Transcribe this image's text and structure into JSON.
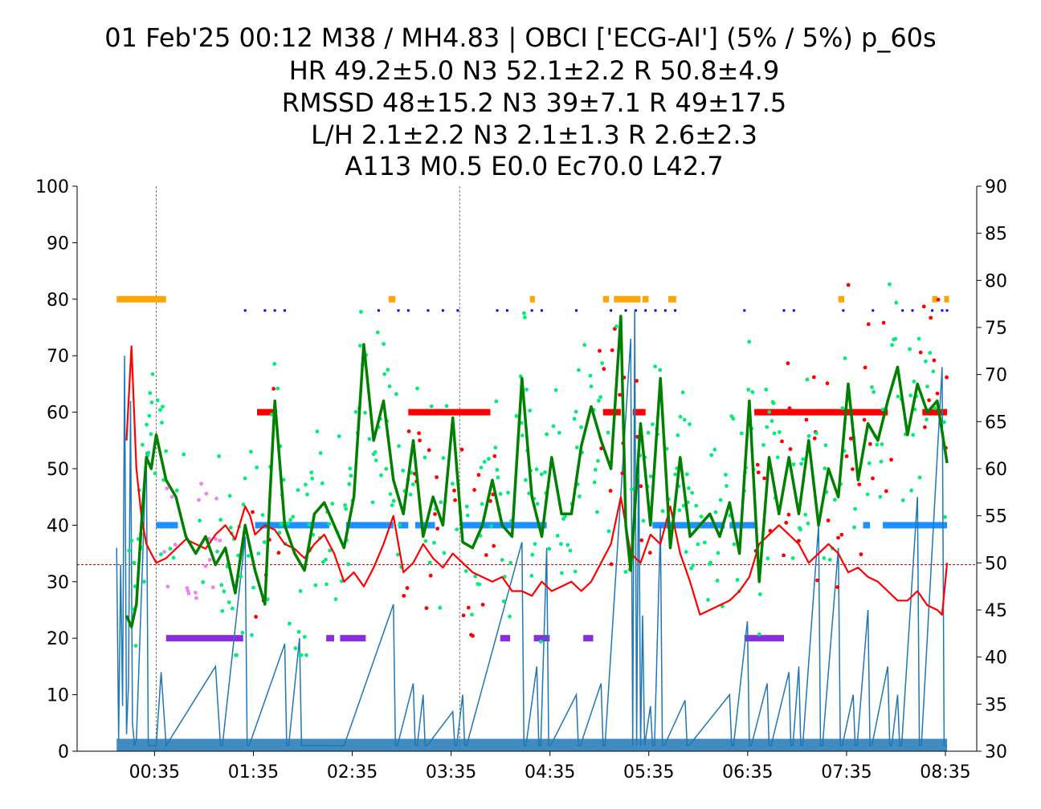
{
  "title_lines": [
    "01 Feb'25 00:12 M38 / MH4.83 | OBCI ['ECG-AI'] (5% / 5%) p_60s",
    "HR 49.2±5.0 N3 52.1±2.2 R 50.8±4.9",
    "RMSSD 48±15.2 N3 39±7.1 R 49±17.5",
    "L/H 2.1±2.2 N3 2.1±1.3 R 2.6±2.3",
    "A113 M0.5 E0.0 Ec70.0 L42.7"
  ],
  "chart_data": {
    "type": "line",
    "x_ticks": [
      "00:35",
      "01:35",
      "02:35",
      "03:35",
      "04:35",
      "05:35",
      "06:35",
      "07:35",
      "08:35"
    ],
    "x_tick_hours": [
      0.583,
      1.583,
      2.583,
      3.583,
      4.583,
      5.583,
      6.583,
      7.583,
      8.583
    ],
    "xlim": [
      -0.2,
      8.9
    ],
    "y_left": {
      "lim": [
        0,
        100
      ],
      "ticks": [
        0,
        10,
        20,
        30,
        40,
        50,
        60,
        70,
        80,
        90,
        100
      ]
    },
    "y_right": {
      "lim": [
        30,
        90
      ],
      "ticks": [
        30,
        35,
        40,
        45,
        50,
        55,
        60,
        65,
        70,
        75,
        80,
        85,
        90
      ]
    },
    "reference_line_right": 49.8,
    "vertical_markers_hours": [
      0.6,
      3.67
    ],
    "colors": {
      "hr_line": "#ff0000",
      "rmssd_line": "#008000",
      "rmssd_points": "#00ee77",
      "wake_points": "#ee82ee",
      "rem_points": "#ff0000",
      "activity": "#1f77b4",
      "wake_band": "#ffa500",
      "rem_band": "#ff0000",
      "light_band": "#1e90ff",
      "deep_band": "#8a2be2",
      "marker_dots": "#0000ff",
      "reference": "#aa0000"
    },
    "hypnogram_bands": {
      "wake_80": [
        [
          0.2,
          0.7
        ],
        [
          2.95,
          3.02
        ],
        [
          4.38,
          4.43
        ],
        [
          5.12,
          5.18
        ],
        [
          5.23,
          5.5
        ],
        [
          5.52,
          5.58
        ],
        [
          5.78,
          5.86
        ],
        [
          7.5,
          7.56
        ],
        [
          8.45,
          8.5
        ],
        [
          8.57,
          8.62
        ]
      ],
      "rem_60": [
        [
          1.62,
          1.8
        ],
        [
          3.15,
          3.98
        ],
        [
          5.12,
          5.3
        ],
        [
          5.42,
          5.55
        ],
        [
          6.65,
          8.0
        ],
        [
          8.35,
          8.6
        ]
      ],
      "light_40": [
        [
          0.6,
          0.82
        ],
        [
          1.6,
          2.35
        ],
        [
          2.52,
          3.0
        ],
        [
          3.05,
          3.15
        ],
        [
          3.22,
          3.42
        ],
        [
          3.68,
          4.55
        ],
        [
          5.62,
          6.35
        ],
        [
          6.4,
          6.68
        ],
        [
          7.75,
          7.82
        ],
        [
          7.95,
          8.6
        ]
      ],
      "deep_20": [
        [
          0.7,
          1.48
        ],
        [
          2.32,
          2.4
        ],
        [
          2.46,
          2.72
        ],
        [
          4.08,
          4.18
        ],
        [
          4.42,
          4.58
        ],
        [
          4.92,
          5.02
        ],
        [
          6.55,
          6.95
        ]
      ]
    },
    "hr_line": {
      "x": [
        0.3,
        0.35,
        0.4,
        0.45,
        0.5,
        0.55,
        0.6,
        0.7,
        0.8,
        0.9,
        1.0,
        1.1,
        1.2,
        1.3,
        1.4,
        1.5,
        1.55,
        1.6,
        1.7,
        1.8,
        1.9,
        2.0,
        2.1,
        2.2,
        2.3,
        2.4,
        2.5,
        2.6,
        2.7,
        2.8,
        2.9,
        3.0,
        3.1,
        3.2,
        3.3,
        3.4,
        3.5,
        3.6,
        3.7,
        3.8,
        3.9,
        4.0,
        4.1,
        4.2,
        4.3,
        4.4,
        4.5,
        4.6,
        4.7,
        4.8,
        4.9,
        5.0,
        5.1,
        5.2,
        5.3,
        5.35,
        5.4,
        5.5,
        5.6,
        5.7,
        5.8,
        5.9,
        6.0,
        6.1,
        6.2,
        6.3,
        6.4,
        6.5,
        6.6,
        6.7,
        6.8,
        6.9,
        7.0,
        7.1,
        7.2,
        7.3,
        7.4,
        7.5,
        7.6,
        7.7,
        7.8,
        7.9,
        8.0,
        8.1,
        8.2,
        8.3,
        8.4,
        8.5,
        8.55,
        8.6
      ],
      "y": [
        63,
        73,
        60,
        55,
        52,
        51,
        50,
        50.5,
        51.5,
        52.5,
        52,
        51.5,
        53,
        54,
        52.5,
        56,
        55,
        53,
        54,
        53.5,
        52,
        51.5,
        50.5,
        52,
        53,
        51,
        48,
        49,
        47.5,
        49.5,
        52,
        55,
        49,
        50,
        52,
        50.5,
        49.5,
        51,
        50,
        49,
        48.5,
        48,
        48.5,
        47,
        47,
        46.5,
        48,
        47,
        47.5,
        48,
        47,
        48,
        50,
        52,
        57,
        54,
        51,
        50,
        53,
        52,
        56,
        51,
        48,
        44.5,
        45,
        45.5,
        46,
        47,
        48.5,
        52,
        53,
        54,
        53,
        52,
        50,
        51,
        52,
        51,
        49,
        49.5,
        48.5,
        48,
        47,
        46,
        46,
        47,
        45.5,
        45,
        44.5,
        50
      ]
    },
    "rmssd_line": {
      "x": [
        0.3,
        0.35,
        0.4,
        0.45,
        0.5,
        0.55,
        0.6,
        0.65,
        0.7,
        0.8,
        0.9,
        1.0,
        1.1,
        1.2,
        1.3,
        1.4,
        1.5,
        1.6,
        1.7,
        1.75,
        1.8,
        1.9,
        2.0,
        2.1,
        2.2,
        2.3,
        2.4,
        2.5,
        2.6,
        2.7,
        2.8,
        2.9,
        3.0,
        3.1,
        3.2,
        3.3,
        3.4,
        3.5,
        3.6,
        3.7,
        3.8,
        3.9,
        4.0,
        4.1,
        4.2,
        4.3,
        4.4,
        4.5,
        4.6,
        4.7,
        4.8,
        4.9,
        5.0,
        5.1,
        5.2,
        5.3,
        5.35,
        5.4,
        5.5,
        5.6,
        5.7,
        5.8,
        5.9,
        6.0,
        6.1,
        6.2,
        6.3,
        6.4,
        6.5,
        6.6,
        6.7,
        6.8,
        6.9,
        7.0,
        7.1,
        7.2,
        7.3,
        7.4,
        7.5,
        7.6,
        7.7,
        7.8,
        7.9,
        8.0,
        8.1,
        8.2,
        8.3,
        8.4,
        8.5,
        8.6
      ],
      "y": [
        24,
        22,
        26,
        40,
        52,
        50,
        56,
        52,
        48,
        45,
        38,
        35,
        38,
        33,
        36,
        28,
        40,
        32,
        26,
        45,
        62,
        40,
        35,
        32,
        42,
        44,
        40,
        36,
        45,
        72,
        55,
        62,
        48,
        42,
        55,
        38,
        45,
        40,
        59,
        37,
        36,
        40,
        48,
        40,
        38,
        66,
        45,
        38,
        52,
        42,
        42,
        54,
        61,
        55,
        50,
        77,
        40,
        32,
        58,
        40,
        66,
        36,
        52,
        38,
        40,
        42,
        38,
        44,
        35,
        62,
        30,
        52,
        42,
        52,
        42,
        55,
        40,
        50,
        45,
        65,
        48,
        58,
        55,
        62,
        68,
        56,
        65,
        60,
        62,
        51
      ]
    },
    "activity_line": {
      "x": [
        0.2,
        0.22,
        0.24,
        0.26,
        0.28,
        0.3,
        0.32,
        0.34,
        0.36,
        0.38,
        0.4,
        0.5,
        0.52,
        0.6,
        0.65,
        0.7,
        1.2,
        1.25,
        1.27,
        1.5,
        1.52,
        1.54,
        1.9,
        1.92,
        1.94,
        2.05,
        2.07,
        2.09,
        2.5,
        3.0,
        3.02,
        3.04,
        3.2,
        3.22,
        3.24,
        3.3,
        3.32,
        3.34,
        3.6,
        3.62,
        3.64,
        3.7,
        3.72,
        3.74,
        4.3,
        4.32,
        4.34,
        4.45,
        4.47,
        4.49,
        4.55,
        4.57,
        4.59,
        4.85,
        4.87,
        4.89,
        5.1,
        5.12,
        5.14,
        5.4,
        5.42,
        5.44,
        5.46,
        5.48,
        5.5,
        5.52,
        5.54,
        5.6,
        5.62,
        5.64,
        5.7,
        5.72,
        5.74,
        5.95,
        5.97,
        5.99,
        6.4,
        6.42,
        6.44,
        6.58,
        6.6,
        6.62,
        6.78,
        6.8,
        6.82,
        7.0,
        7.02,
        7.04,
        7.1,
        7.12,
        7.14,
        7.3,
        7.32,
        7.34,
        7.5,
        7.52,
        7.54,
        7.65,
        7.67,
        7.69,
        7.8,
        7.82,
        7.84,
        8.0,
        8.02,
        8.04,
        8.1,
        8.12,
        8.14,
        8.3,
        8.32,
        8.34,
        8.55,
        8.57,
        8.59,
        8.6
      ],
      "y": [
        36,
        2,
        33,
        8,
        70,
        3,
        12,
        62,
        5,
        1,
        2,
        53,
        1,
        1,
        14,
        1,
        15,
        1,
        1,
        38,
        1,
        1,
        19,
        1,
        1,
        20,
        1,
        1,
        1,
        26,
        1,
        1,
        12,
        1,
        1,
        10,
        1,
        1,
        7,
        1,
        1,
        10,
        1,
        1,
        37,
        1,
        1,
        15,
        1,
        1,
        36,
        1,
        1,
        10,
        1,
        1,
        12,
        1,
        1,
        73,
        1,
        78,
        1,
        56,
        1,
        24,
        1,
        8,
        1,
        1,
        40,
        1,
        1,
        9,
        1,
        1,
        10,
        1,
        1,
        23,
        1,
        1,
        12,
        1,
        1,
        14,
        1,
        1,
        15,
        1,
        1,
        40,
        1,
        1,
        36,
        1,
        1,
        10,
        1,
        1,
        25,
        1,
        1,
        15,
        1,
        1,
        10,
        1,
        1,
        45,
        1,
        1,
        68,
        1,
        1,
        1
      ]
    },
    "marker_dots_hours": [
      1.5,
      1.7,
      1.8,
      1.9,
      2.85,
      3.05,
      3.15,
      3.35,
      3.5,
      3.65,
      4.05,
      4.15,
      4.4,
      4.5,
      4.85,
      5.2,
      5.35,
      5.45,
      5.55,
      5.65,
      5.75,
      5.85,
      6.55,
      6.95,
      7.05,
      7.55,
      7.85,
      8.15,
      8.25,
      8.45,
      8.55,
      8.6
    ]
  }
}
